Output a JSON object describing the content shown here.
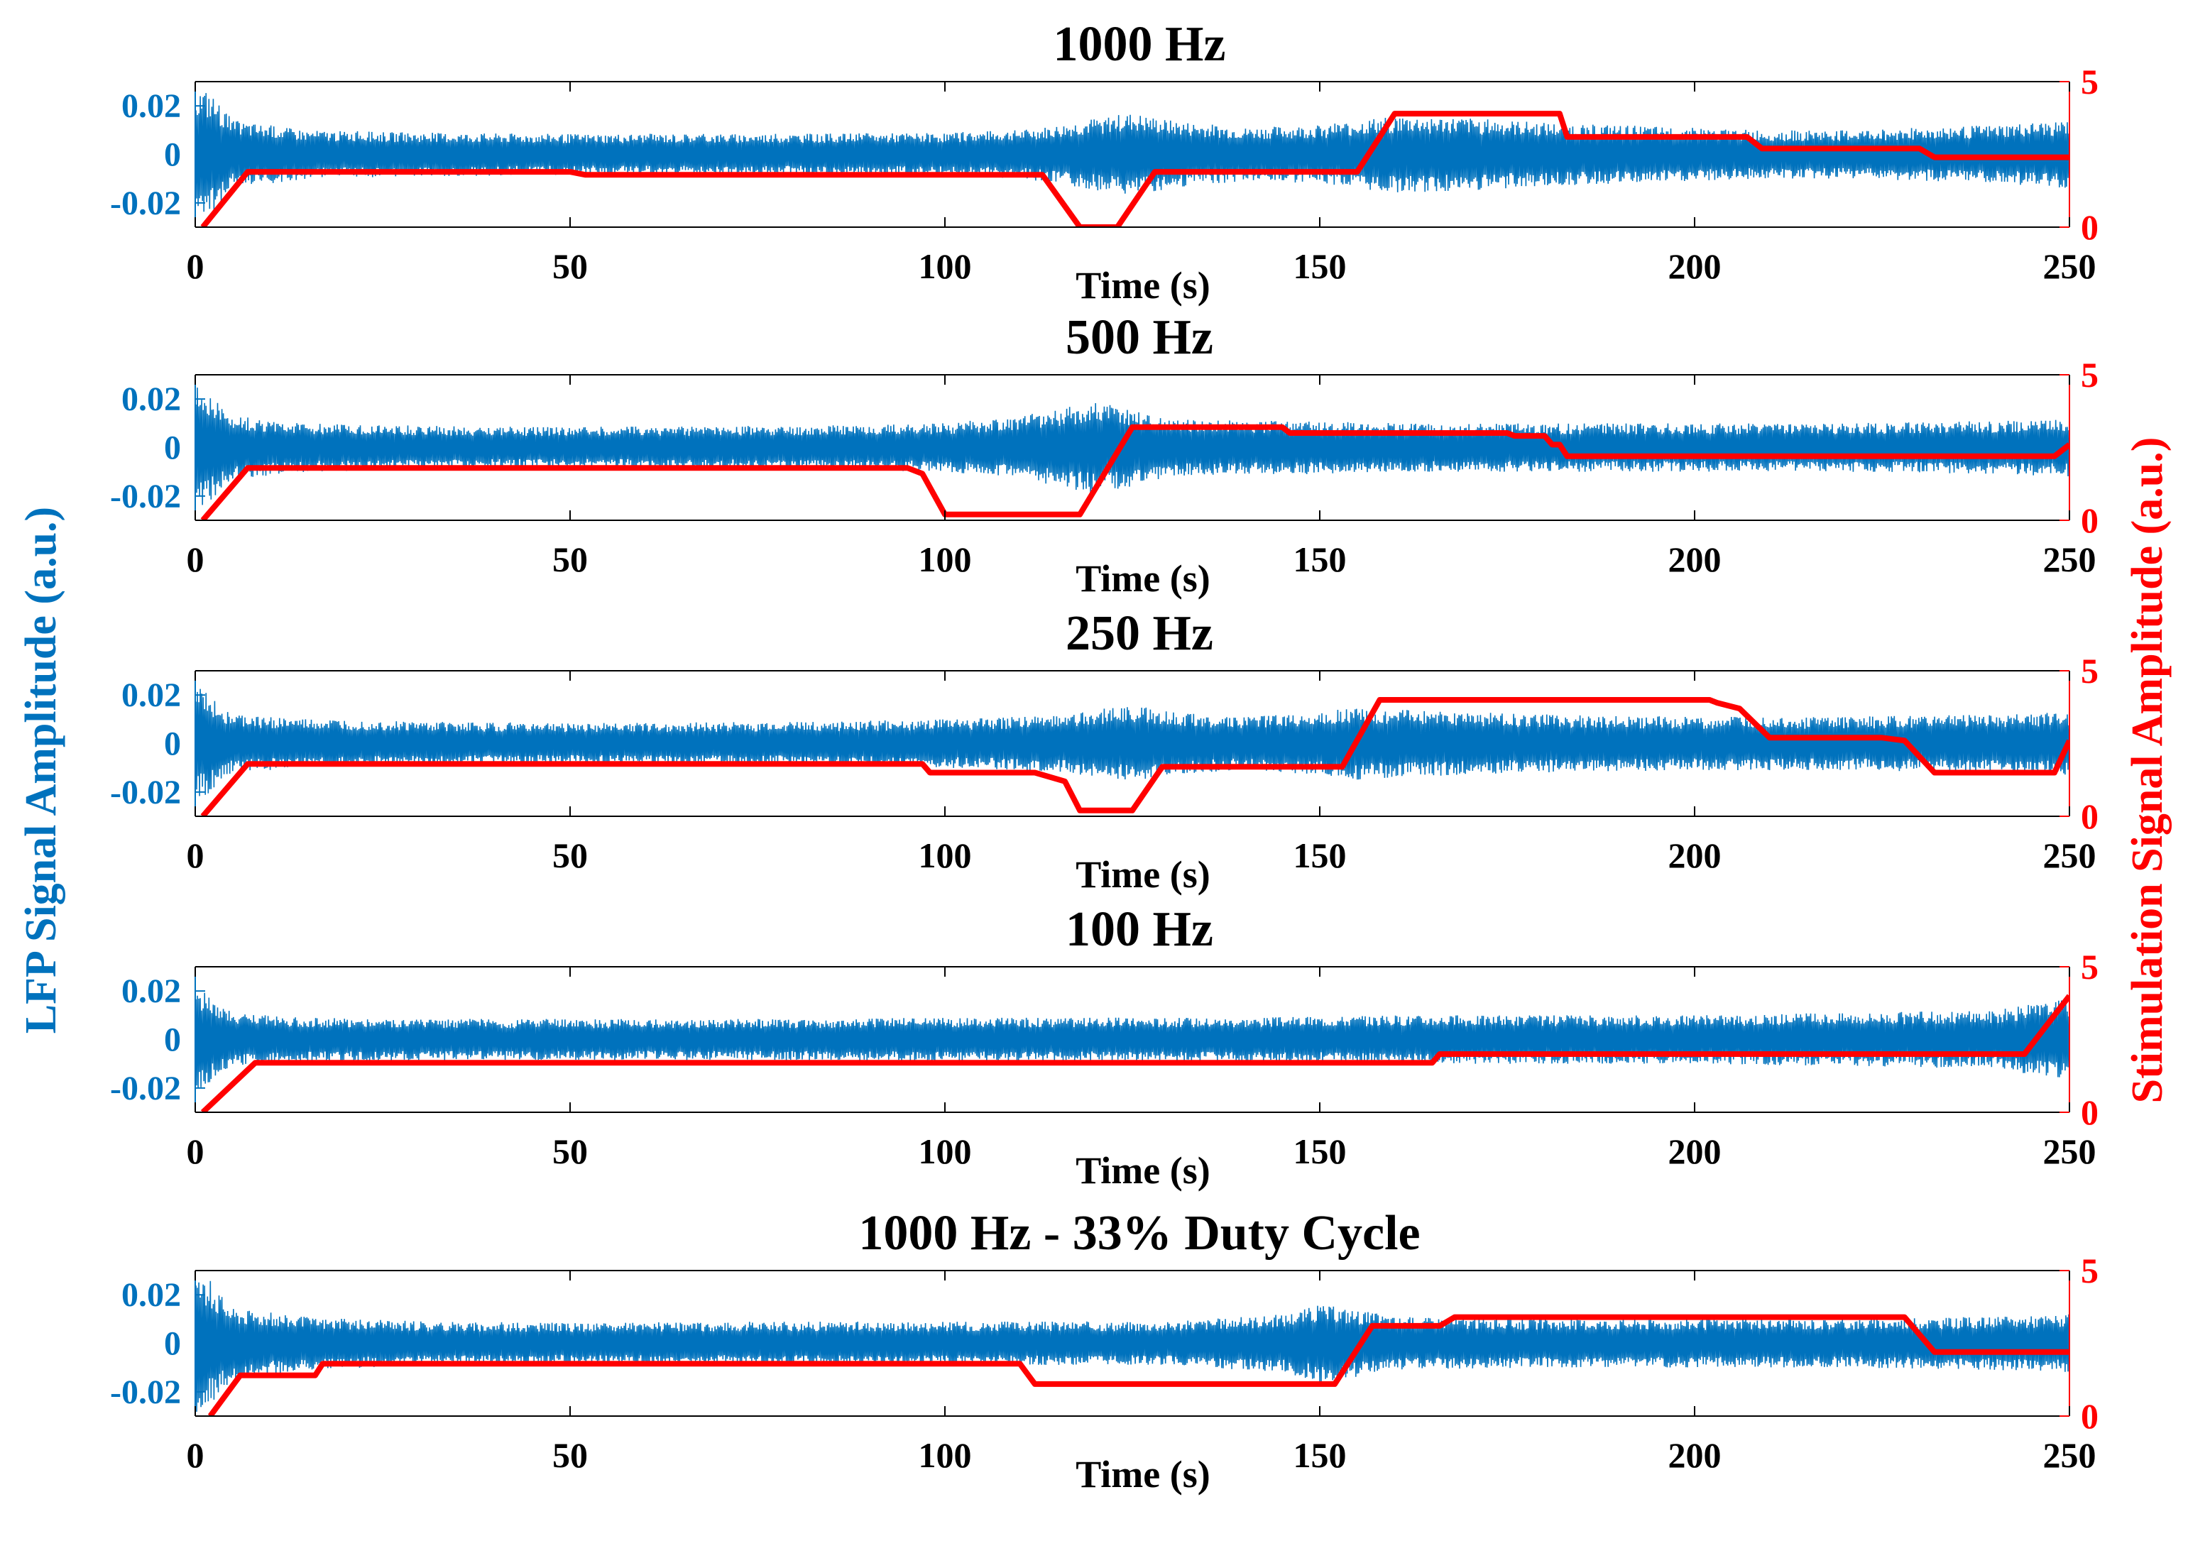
{
  "colors": {
    "lfp": "#0072BD",
    "stim": "#FF0000",
    "axis": "#000000",
    "left_axis": "#0072BD",
    "right_axis": "#FF0000"
  },
  "figure": {
    "left_ylabel": "LFP Signal Amplitude (a.u.)",
    "right_ylabel": "Stimulation Signal Amplitude (a.u.)"
  },
  "chart_data": [
    {
      "type": "line",
      "title": "1000 Hz",
      "xlabel": "Time (s)",
      "xlim": [
        0,
        250
      ],
      "xticks": [
        0,
        50,
        100,
        150,
        200,
        250
      ],
      "left_ylim": [
        -0.03,
        0.03
      ],
      "left_yticks": [
        -0.02,
        0,
        0.02
      ],
      "left_ytick_labels": [
        "-0.02",
        "0",
        "0.02"
      ],
      "right_ylim": [
        0,
        5
      ],
      "right_yticks": [
        0,
        5
      ],
      "lfp_envelope": {
        "t": [
          0,
          2,
          5,
          15,
          30,
          50,
          80,
          100,
          110,
          115,
          120,
          125,
          130,
          140,
          150,
          155,
          160,
          170,
          180,
          200,
          210,
          220,
          240,
          250
        ],
        "amp": [
          0.028,
          0.026,
          0.014,
          0.01,
          0.009,
          0.0085,
          0.0085,
          0.009,
          0.01,
          0.012,
          0.015,
          0.017,
          0.014,
          0.011,
          0.012,
          0.014,
          0.016,
          0.015,
          0.013,
          0.011,
          0.01,
          0.01,
          0.012,
          0.014
        ]
      },
      "stim_series": {
        "name": "Stimulation",
        "t": [
          1,
          7,
          50,
          52,
          113,
          118,
          123,
          128,
          155,
          160,
          182,
          183,
          207,
          209,
          230,
          232,
          250
        ],
        "v": [
          0,
          1.9,
          1.9,
          1.8,
          1.8,
          0,
          0,
          1.9,
          1.9,
          3.9,
          3.9,
          3.1,
          3.1,
          2.7,
          2.7,
          2.4,
          2.4
        ]
      }
    },
    {
      "type": "line",
      "title": "500 Hz",
      "xlabel": "Time (s)",
      "xlim": [
        0,
        250
      ],
      "xticks": [
        0,
        50,
        100,
        150,
        200,
        250
      ],
      "left_ylim": [
        -0.03,
        0.03
      ],
      "left_yticks": [
        -0.02,
        0,
        0.02
      ],
      "left_ytick_labels": [
        "-0.02",
        "0",
        "0.02"
      ],
      "right_ylim": [
        0,
        5
      ],
      "right_yticks": [
        0,
        5
      ],
      "lfp_envelope": {
        "t": [
          0,
          2,
          5,
          15,
          30,
          50,
          80,
          100,
          110,
          115,
          120,
          125,
          130,
          140,
          150,
          160,
          180,
          200,
          220,
          240,
          250
        ],
        "amp": [
          0.026,
          0.022,
          0.013,
          0.01,
          0.009,
          0.0085,
          0.009,
          0.01,
          0.013,
          0.016,
          0.019,
          0.016,
          0.012,
          0.011,
          0.011,
          0.01,
          0.01,
          0.01,
          0.01,
          0.011,
          0.012
        ]
      },
      "stim_series": {
        "name": "Stimulation",
        "t": [
          1,
          7,
          95,
          97,
          100,
          118,
          125,
          145,
          146,
          175,
          176,
          180,
          181,
          182,
          183,
          248,
          250
        ],
        "v": [
          0,
          1.8,
          1.8,
          1.6,
          0.2,
          0.2,
          3.2,
          3.2,
          3.0,
          3.0,
          2.9,
          2.9,
          2.6,
          2.6,
          2.2,
          2.2,
          2.6
        ]
      }
    },
    {
      "type": "line",
      "title": "250 Hz",
      "xlabel": "Time (s)",
      "xlim": [
        0,
        250
      ],
      "xticks": [
        0,
        50,
        100,
        150,
        200,
        250
      ],
      "left_ylim": [
        -0.03,
        0.03
      ],
      "left_yticks": [
        -0.02,
        0,
        0.02
      ],
      "left_ytick_labels": [
        "-0.02",
        "0",
        "0.02"
      ],
      "right_ylim": [
        0,
        5
      ],
      "right_yticks": [
        0,
        5
      ],
      "lfp_envelope": {
        "t": [
          0,
          2,
          5,
          15,
          30,
          50,
          80,
          100,
          110,
          115,
          120,
          125,
          130,
          140,
          150,
          155,
          160,
          180,
          200,
          220,
          240,
          250
        ],
        "amp": [
          0.024,
          0.02,
          0.012,
          0.01,
          0.009,
          0.0085,
          0.009,
          0.01,
          0.011,
          0.012,
          0.014,
          0.016,
          0.013,
          0.011,
          0.013,
          0.015,
          0.014,
          0.012,
          0.011,
          0.011,
          0.012,
          0.013
        ]
      },
      "stim_series": {
        "name": "Stimulation",
        "t": [
          1,
          7,
          97,
          98,
          112,
          116,
          118,
          125,
          129,
          153,
          158,
          202,
          203,
          206,
          210,
          225,
          228,
          232,
          248,
          250
        ],
        "v": [
          0,
          1.8,
          1.8,
          1.5,
          1.5,
          1.2,
          0.2,
          0.2,
          1.7,
          1.7,
          4.0,
          4.0,
          3.9,
          3.7,
          2.7,
          2.7,
          2.6,
          1.5,
          1.5,
          2.6
        ]
      }
    },
    {
      "type": "line",
      "title": "100 Hz",
      "xlabel": "Time (s)",
      "xlim": [
        0,
        250
      ],
      "xticks": [
        0,
        50,
        100,
        150,
        200,
        250
      ],
      "left_ylim": [
        -0.03,
        0.03
      ],
      "left_yticks": [
        -0.02,
        0,
        0.02
      ],
      "left_ytick_labels": [
        "-0.02",
        "0",
        "0.02"
      ],
      "right_ylim": [
        0,
        5
      ],
      "right_yticks": [
        0,
        5
      ],
      "lfp_envelope": {
        "t": [
          0,
          2,
          5,
          15,
          30,
          50,
          80,
          100,
          120,
          140,
          160,
          180,
          200,
          220,
          240,
          250
        ],
        "amp": [
          0.022,
          0.018,
          0.011,
          0.009,
          0.0085,
          0.0085,
          0.0085,
          0.009,
          0.009,
          0.009,
          0.01,
          0.01,
          0.01,
          0.011,
          0.012,
          0.017
        ]
      },
      "stim_series": {
        "name": "Stimulation",
        "t": [
          1,
          8,
          165,
          166,
          244,
          250
        ],
        "v": [
          0,
          1.7,
          1.7,
          2.0,
          2.0,
          4.0
        ]
      }
    },
    {
      "type": "line",
      "title": "1000 Hz - 33% Duty Cycle",
      "xlabel": "Time (s)",
      "xlim": [
        0,
        250
      ],
      "xticks": [
        0,
        50,
        100,
        150,
        200,
        250
      ],
      "left_ylim": [
        -0.03,
        0.03
      ],
      "left_yticks": [
        -0.02,
        0,
        0.02
      ],
      "left_ytick_labels": [
        "-0.02",
        "0",
        "0.02"
      ],
      "right_ylim": [
        0,
        5
      ],
      "right_yticks": [
        0,
        5
      ],
      "lfp_envelope": {
        "t": [
          0,
          2,
          5,
          15,
          30,
          50,
          80,
          100,
          110,
          130,
          145,
          150,
          155,
          160,
          180,
          200,
          220,
          240,
          250
        ],
        "amp": [
          0.03,
          0.026,
          0.015,
          0.011,
          0.009,
          0.0085,
          0.009,
          0.009,
          0.009,
          0.009,
          0.012,
          0.016,
          0.014,
          0.011,
          0.01,
          0.01,
          0.01,
          0.011,
          0.012
        ]
      },
      "stim_series": {
        "name": "Stimulation",
        "t": [
          2,
          6,
          16,
          17,
          110,
          112,
          152,
          157,
          166,
          168,
          228,
          232,
          250
        ],
        "v": [
          0,
          1.4,
          1.4,
          1.8,
          1.8,
          1.1,
          1.1,
          3.1,
          3.1,
          3.4,
          3.4,
          2.2,
          2.2
        ]
      }
    }
  ]
}
